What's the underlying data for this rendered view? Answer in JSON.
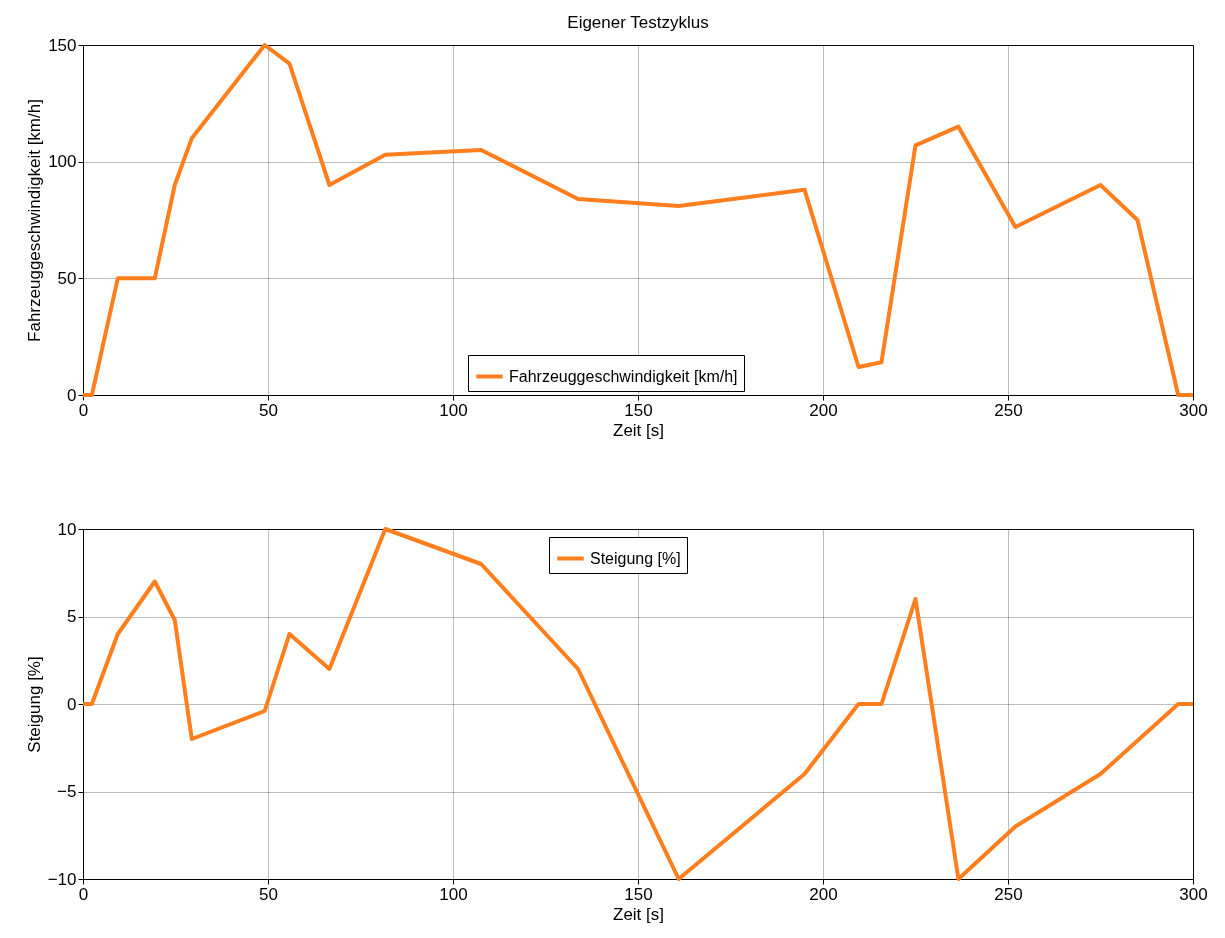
{
  "chart_data": [
    {
      "type": "line",
      "title": "Eigener Testzyklus",
      "xlabel": "Zeit [s]",
      "ylabel": "Fahrzeuggeschwindigkeit [km/h]",
      "xlim": [
        0,
        300
      ],
      "xticks": [
        0,
        50,
        100,
        150,
        200,
        250,
        300
      ],
      "ylim": [
        0,
        150
      ],
      "yticks": [
        0,
        50,
        100,
        150
      ],
      "grid": true,
      "legend": "bottom",
      "line_style": "solid",
      "marker": "none",
      "x": [
        0,
        2.4,
        9.4,
        19.4,
        24.8,
        29.4,
        49.1,
        55.8,
        66.6,
        81.7,
        107.6,
        133.8,
        161,
        195,
        209.6,
        215.8,
        225,
        236.6,
        252,
        275,
        285,
        296,
        300
      ],
      "series": [
        {
          "name": "Fahrzeuggeschwindigkeit [km/h]",
          "color": "#ff7f1e",
          "values": [
            0,
            0,
            50,
            50,
            90,
            110,
            150,
            142,
            90,
            103,
            105,
            84,
            81,
            88,
            12,
            14,
            107,
            115,
            72,
            90,
            75,
            0,
            0
          ]
        }
      ]
    },
    {
      "type": "line",
      "xlabel": "Zeit [s]",
      "ylabel": "Steigung [%]",
      "xlim": [
        0,
        300
      ],
      "xticks": [
        0,
        50,
        100,
        150,
        200,
        250,
        300
      ],
      "ylim": [
        -10,
        10
      ],
      "yticks": [
        -10,
        -5,
        0,
        5,
        10
      ],
      "grid": true,
      "legend": "top",
      "line_style": "solid",
      "marker": "none",
      "x": [
        0,
        2.4,
        9.4,
        19.4,
        24.8,
        29.4,
        49.1,
        55.8,
        66.6,
        81.7,
        107.6,
        133.8,
        161,
        195,
        209.6,
        215.8,
        225,
        236.6,
        252,
        275,
        296,
        300
      ],
      "series": [
        {
          "name": "Steigung [%]",
          "color": "#ff7f1e",
          "values": [
            0,
            0,
            4,
            7,
            4.8,
            -2,
            -0.4,
            4,
            2,
            10,
            8,
            2,
            -10,
            -4,
            0,
            0,
            6,
            -10,
            -7,
            -4,
            0,
            0
          ]
        }
      ]
    }
  ]
}
